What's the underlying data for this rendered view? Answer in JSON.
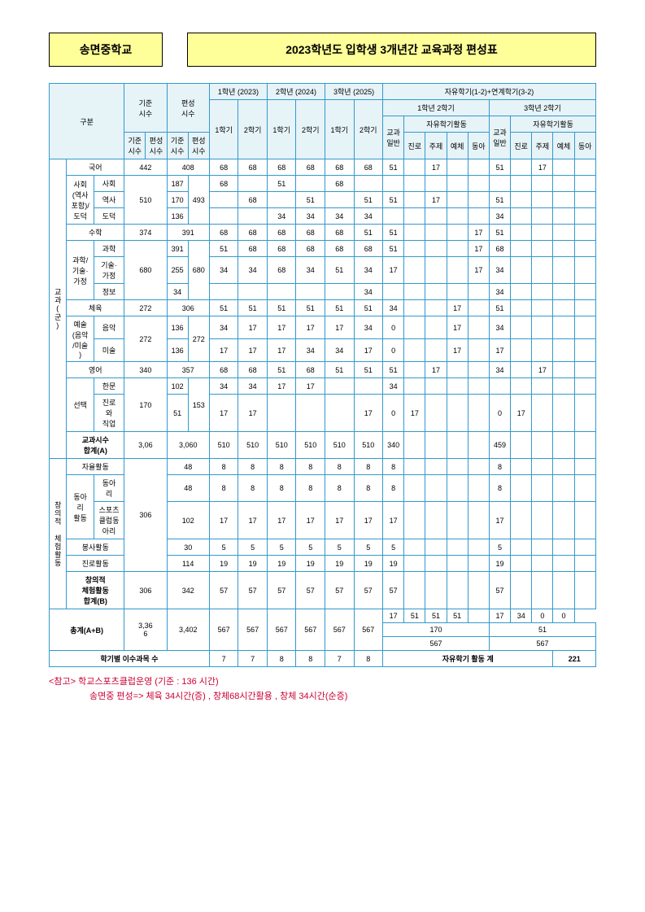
{
  "header": {
    "school": "송면중학교",
    "title": "2023학년도 입학생 3개년간 교육과정 편성표"
  },
  "colheads": {
    "gubun": "구분",
    "gijun": "기준\n시수",
    "pyeon": "편성\n시수",
    "y1": "1학년 (2023)",
    "y2": "2학년 (2024)",
    "y3": "3학년 (2025)",
    "free": "자유학기(1-2)+연계학기(3-2)",
    "sem1": "1학기",
    "sem2": "2학기",
    "y1s2": "1학년 2학기",
    "y3s2": "3학년 2학기",
    "gyogwa": "교과\n일반",
    "free_act": "자유학기활동",
    "jinro": "진로",
    "juje": "주제",
    "yeche": "예체",
    "donga": "동아"
  },
  "rowlabels": {
    "gyogwa": "교과(군)",
    "korean": "국어",
    "social": "사회\n(역사\n포함)/\n도덕",
    "sahoe": "사회",
    "yeoksa": "역사",
    "dodeuk": "도덕",
    "math": "수학",
    "science": "과학/\n기술·\n가정",
    "gwahak": "과학",
    "gisul": "기술·\n가정",
    "jeongbo": "정보",
    "pe": "체육",
    "art": "예술\n(음악\n/미술\n)",
    "eumak": "음악",
    "misul": "미술",
    "english": "영어",
    "seontaek": "선택",
    "hanmun": "한문",
    "jinrowa": "진로\n와\n직업",
    "sumA": "교과시수\n합계(A)",
    "chang": "창의적 체험활동",
    "jayul": "자율활동",
    "dongari_act": "동아\n리\n활동",
    "dongari": "동아\n리",
    "sports": "스포츠\n클럽동\n아리",
    "bongsa": "봉사활동",
    "jinro_act": "진로활동",
    "sumB": "창의적\n체험활동\n합계(B)",
    "total": "총계(A+B)",
    "subjects": "학기별 이수과목 수",
    "free_total": "자유학기 활동 계",
    "free_total_val": "221"
  },
  "data": {
    "korean": [
      "442",
      "408",
      "68",
      "68",
      "68",
      "68",
      "68",
      "68",
      "51",
      "",
      "17",
      "",
      "",
      "51",
      "",
      "17",
      "",
      ""
    ],
    "sahoe": [
      "",
      "187",
      "68",
      "",
      "51",
      "",
      "68",
      "",
      "",
      "",
      "",
      "",
      "",
      "",
      "",
      "",
      "",
      ""
    ],
    "yeoksa": [
      "510",
      "170",
      "493",
      "",
      "68",
      "",
      "51",
      "",
      "51",
      "51",
      "",
      "17",
      "",
      "",
      "51",
      "",
      "",
      "",
      ""
    ],
    "dodeuk": [
      "",
      "136",
      "",
      "",
      "34",
      "34",
      "34",
      "34",
      "",
      "",
      "",
      "",
      "",
      "34",
      "",
      "",
      "",
      ""
    ],
    "math": [
      "374",
      "391",
      "68",
      "68",
      "68",
      "68",
      "68",
      "51",
      "51",
      "",
      "",
      "",
      "17",
      "51",
      "",
      "",
      "",
      ""
    ],
    "gwahak": [
      "",
      "391",
      "51",
      "68",
      "68",
      "68",
      "68",
      "68",
      "51",
      "",
      "",
      "",
      "17",
      "68",
      "",
      "",
      "",
      ""
    ],
    "gisul": [
      "680",
      "255",
      "680",
      "34",
      "34",
      "68",
      "34",
      "51",
      "34",
      "17",
      "",
      "",
      "",
      "17",
      "34",
      "",
      "",
      "",
      ""
    ],
    "jeongbo": [
      "",
      "34",
      "",
      "",
      "",
      "",
      "",
      "34",
      "",
      "",
      "",
      "",
      "",
      "34",
      "",
      "",
      "",
      ""
    ],
    "pe": [
      "272",
      "306",
      "51",
      "51",
      "51",
      "51",
      "51",
      "51",
      "34",
      "",
      "",
      "17",
      "",
      "51",
      "",
      "",
      "",
      ""
    ],
    "eumak": [
      "",
      "136",
      "",
      "34",
      "17",
      "17",
      "17",
      "17",
      "34",
      "0",
      "",
      "",
      "17",
      "",
      "34",
      "",
      "",
      "",
      ""
    ],
    "misul": [
      "272",
      "136",
      "272",
      "17",
      "17",
      "17",
      "34",
      "34",
      "17",
      "0",
      "",
      "",
      "17",
      "",
      "17",
      "",
      "",
      "",
      ""
    ],
    "english": [
      "340",
      "357",
      "68",
      "68",
      "51",
      "68",
      "51",
      "51",
      "51",
      "",
      "17",
      "",
      "",
      "34",
      "",
      "17",
      "",
      ""
    ],
    "hanmun": [
      "",
      "102",
      "",
      "34",
      "34",
      "17",
      "17",
      "",
      "",
      "34",
      "",
      "",
      "",
      "",
      "",
      "",
      "",
      "",
      ""
    ],
    "jinrowa": [
      "170",
      "51",
      "153",
      "17",
      "17",
      "",
      "",
      "",
      "17",
      "0",
      "17",
      "",
      "",
      "",
      "0",
      "17",
      "",
      "",
      ""
    ],
    "sumA": [
      "3,06",
      "3,060",
      "510",
      "510",
      "510",
      "510",
      "510",
      "510",
      "340",
      "",
      "",
      "",
      "",
      "459",
      "",
      "",
      "",
      ""
    ],
    "jayul": [
      "",
      "48",
      "8",
      "8",
      "8",
      "8",
      "8",
      "8",
      "8",
      "",
      "",
      "",
      "",
      "8",
      "",
      "",
      "",
      ""
    ],
    "dongari": [
      "",
      "48",
      "8",
      "8",
      "8",
      "8",
      "8",
      "8",
      "8",
      "",
      "",
      "",
      "",
      "8",
      "",
      "",
      "",
      ""
    ],
    "sports": [
      "306",
      "102",
      "17",
      "17",
      "17",
      "17",
      "17",
      "17",
      "17",
      "",
      "",
      "",
      "",
      "17",
      "",
      "",
      "",
      ""
    ],
    "bongsa": [
      "",
      "30",
      "5",
      "5",
      "5",
      "5",
      "5",
      "5",
      "5",
      "",
      "",
      "",
      "",
      "5",
      "",
      "",
      "",
      ""
    ],
    "jinro_act": [
      "",
      "114",
      "19",
      "19",
      "19",
      "19",
      "19",
      "19",
      "19",
      "",
      "",
      "",
      "",
      "19",
      "",
      "",
      "",
      ""
    ],
    "sumB": [
      "306",
      "342",
      "57",
      "57",
      "57",
      "57",
      "57",
      "57",
      "57",
      "",
      "",
      "",
      "",
      "57",
      "",
      "",
      "",
      ""
    ],
    "total": [
      "3,36\n6",
      "3,402",
      "567",
      "567",
      "567",
      "567",
      "567",
      "567"
    ],
    "total_r1": [
      "17",
      "51",
      "51",
      "51",
      "",
      "17",
      "34",
      "0",
      "0"
    ],
    "total_r2": [
      "170",
      "51"
    ],
    "total_r3": [
      "567",
      "567"
    ],
    "subjects": [
      "7",
      "7",
      "8",
      "8",
      "7",
      "8"
    ]
  },
  "footnote": {
    "l1": "<참고> 학교스포츠클럽운영 (기준 : 136 시간)",
    "l2": "송면중 편성=> 체육 34시간(증) , 창체68시간활용 , 창체 34시간(순증)"
  }
}
